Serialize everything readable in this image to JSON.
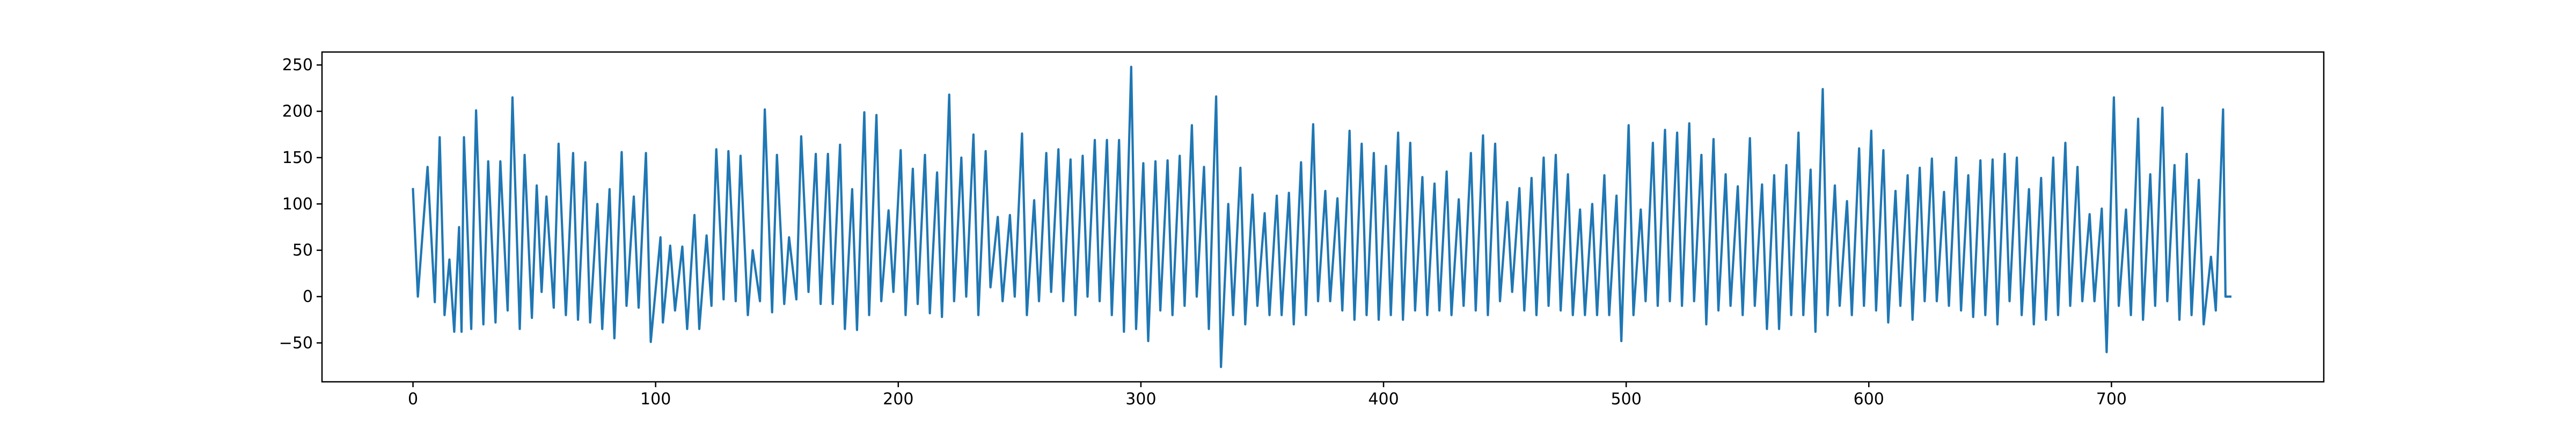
{
  "chart_data": {
    "type": "line",
    "title": "",
    "xlabel": "",
    "ylabel": "",
    "xlim": [
      -37.5,
      787.5
    ],
    "ylim": [
      -92,
      264
    ],
    "grid": false,
    "legend": "none",
    "xticks": [
      0,
      100,
      200,
      300,
      400,
      500,
      600,
      700
    ],
    "yticks": [
      -50,
      0,
      50,
      100,
      150,
      200,
      250
    ],
    "series": [
      {
        "color": "#1f77b4",
        "peaks": [
          [
            0,
            116
          ],
          [
            6,
            140
          ],
          [
            11,
            172
          ],
          [
            15,
            40
          ],
          [
            19,
            75
          ],
          [
            21,
            172
          ],
          [
            26,
            201
          ],
          [
            31,
            146
          ],
          [
            36,
            146
          ],
          [
            41,
            215
          ],
          [
            46,
            153
          ],
          [
            51,
            120
          ],
          [
            55,
            108
          ],
          [
            60,
            165
          ],
          [
            66,
            155
          ],
          [
            71,
            145
          ],
          [
            76,
            100
          ],
          [
            81,
            116
          ],
          [
            86,
            156
          ],
          [
            91,
            108
          ],
          [
            96,
            155
          ],
          [
            102,
            64
          ],
          [
            106,
            55
          ],
          [
            111,
            54
          ],
          [
            116,
            88
          ],
          [
            121,
            66
          ],
          [
            125,
            159
          ],
          [
            130,
            157
          ],
          [
            135,
            152
          ],
          [
            140,
            50
          ],
          [
            145,
            202
          ],
          [
            150,
            153
          ],
          [
            155,
            64
          ],
          [
            160,
            173
          ],
          [
            166,
            154
          ],
          [
            171,
            154
          ],
          [
            176,
            164
          ],
          [
            181,
            116
          ],
          [
            186,
            199
          ],
          [
            191,
            196
          ],
          [
            196,
            93
          ],
          [
            201,
            158
          ],
          [
            206,
            138
          ],
          [
            211,
            153
          ],
          [
            216,
            134
          ],
          [
            221,
            218
          ],
          [
            226,
            150
          ],
          [
            231,
            175
          ],
          [
            236,
            157
          ],
          [
            241,
            86
          ],
          [
            246,
            88
          ],
          [
            251,
            176
          ],
          [
            256,
            104
          ],
          [
            261,
            155
          ],
          [
            266,
            159
          ],
          [
            271,
            148
          ],
          [
            276,
            152
          ],
          [
            281,
            169
          ],
          [
            286,
            169
          ],
          [
            291,
            169
          ],
          [
            296,
            248
          ],
          [
            301,
            144
          ],
          [
            306,
            146
          ],
          [
            311,
            147
          ],
          [
            316,
            152
          ],
          [
            321,
            185
          ],
          [
            326,
            140
          ],
          [
            331,
            216
          ],
          [
            336,
            100
          ],
          [
            341,
            139
          ],
          [
            346,
            110
          ],
          [
            351,
            90
          ],
          [
            356,
            109
          ],
          [
            361,
            112
          ],
          [
            366,
            145
          ],
          [
            371,
            186
          ],
          [
            376,
            114
          ],
          [
            381,
            106
          ],
          [
            386,
            179
          ],
          [
            391,
            165
          ],
          [
            396,
            155
          ],
          [
            401,
            141
          ],
          [
            406,
            177
          ],
          [
            411,
            166
          ],
          [
            416,
            129
          ],
          [
            421,
            122
          ],
          [
            426,
            135
          ],
          [
            431,
            105
          ],
          [
            436,
            155
          ],
          [
            441,
            174
          ],
          [
            446,
            165
          ],
          [
            451,
            102
          ],
          [
            456,
            117
          ],
          [
            461,
            128
          ],
          [
            466,
            150
          ],
          [
            471,
            153
          ],
          [
            476,
            132
          ],
          [
            481,
            94
          ],
          [
            486,
            100
          ],
          [
            491,
            131
          ],
          [
            496,
            109
          ],
          [
            501,
            185
          ],
          [
            506,
            94
          ],
          [
            511,
            166
          ],
          [
            516,
            180
          ],
          [
            521,
            177
          ],
          [
            526,
            187
          ],
          [
            531,
            153
          ],
          [
            536,
            170
          ],
          [
            541,
            132
          ],
          [
            546,
            119
          ],
          [
            551,
            171
          ],
          [
            556,
            121
          ],
          [
            561,
            131
          ],
          [
            566,
            142
          ],
          [
            571,
            177
          ],
          [
            576,
            137
          ],
          [
            581,
            224
          ],
          [
            586,
            120
          ],
          [
            591,
            103
          ],
          [
            596,
            160
          ],
          [
            601,
            179
          ],
          [
            606,
            158
          ],
          [
            611,
            114
          ],
          [
            616,
            131
          ],
          [
            621,
            139
          ],
          [
            626,
            149
          ],
          [
            631,
            113
          ],
          [
            636,
            150
          ],
          [
            641,
            131
          ],
          [
            646,
            147
          ],
          [
            651,
            148
          ],
          [
            656,
            154
          ],
          [
            661,
            150
          ],
          [
            666,
            116
          ],
          [
            671,
            128
          ],
          [
            676,
            150
          ],
          [
            681,
            166
          ],
          [
            686,
            140
          ],
          [
            691,
            89
          ],
          [
            696,
            95
          ],
          [
            701,
            215
          ],
          [
            706,
            94
          ],
          [
            711,
            192
          ],
          [
            716,
            132
          ],
          [
            721,
            204
          ],
          [
            726,
            142
          ],
          [
            731,
            154
          ],
          [
            736,
            126
          ],
          [
            741,
            43
          ],
          [
            746,
            202
          ],
          [
            749,
            0
          ]
        ],
        "troughs": [
          [
            2,
            0
          ],
          [
            9,
            -6
          ],
          [
            13,
            -20
          ],
          [
            17,
            -38
          ],
          [
            20,
            -38
          ],
          [
            24,
            -35
          ],
          [
            29,
            -30
          ],
          [
            34,
            -28
          ],
          [
            39,
            -15
          ],
          [
            44,
            -35
          ],
          [
            49,
            -23
          ],
          [
            53,
            5
          ],
          [
            58,
            -12
          ],
          [
            63,
            -20
          ],
          [
            68,
            -25
          ],
          [
            73,
            -28
          ],
          [
            78,
            -35
          ],
          [
            83,
            -45
          ],
          [
            88,
            -10
          ],
          [
            93,
            -12
          ],
          [
            98,
            -49
          ],
          [
            103,
            -28
          ],
          [
            108,
            -15
          ],
          [
            113,
            -35
          ],
          [
            118,
            -35
          ],
          [
            123,
            -10
          ],
          [
            128,
            -3
          ],
          [
            133,
            -5
          ],
          [
            138,
            -20
          ],
          [
            143,
            -5
          ],
          [
            148,
            -17
          ],
          [
            153,
            -8
          ],
          [
            158,
            -3
          ],
          [
            163,
            5
          ],
          [
            168,
            -8
          ],
          [
            173,
            -8
          ],
          [
            178,
            -35
          ],
          [
            183,
            -36
          ],
          [
            188,
            -20
          ],
          [
            193,
            -5
          ],
          [
            198,
            5
          ],
          [
            203,
            -20
          ],
          [
            208,
            -8
          ],
          [
            213,
            -18
          ],
          [
            218,
            -22
          ],
          [
            223,
            -5
          ],
          [
            228,
            0
          ],
          [
            233,
            -20
          ],
          [
            238,
            10
          ],
          [
            243,
            -5
          ],
          [
            248,
            0
          ],
          [
            253,
            -20
          ],
          [
            258,
            -5
          ],
          [
            263,
            5
          ],
          [
            268,
            -5
          ],
          [
            273,
            -20
          ],
          [
            278,
            0
          ],
          [
            283,
            -5
          ],
          [
            288,
            -20
          ],
          [
            293,
            -38
          ],
          [
            298,
            -35
          ],
          [
            303,
            -48
          ],
          [
            308,
            -15
          ],
          [
            313,
            -20
          ],
          [
            318,
            -10
          ],
          [
            323,
            0
          ],
          [
            328,
            -35
          ],
          [
            333,
            -76
          ],
          [
            338,
            -20
          ],
          [
            343,
            -30
          ],
          [
            348,
            -10
          ],
          [
            353,
            -20
          ],
          [
            358,
            -20
          ],
          [
            363,
            -30
          ],
          [
            368,
            -20
          ],
          [
            373,
            -5
          ],
          [
            378,
            -5
          ],
          [
            383,
            -15
          ],
          [
            388,
            -25
          ],
          [
            393,
            -20
          ],
          [
            398,
            -25
          ],
          [
            403,
            -20
          ],
          [
            408,
            -25
          ],
          [
            413,
            -15
          ],
          [
            418,
            -20
          ],
          [
            423,
            -15
          ],
          [
            428,
            -20
          ],
          [
            433,
            -10
          ],
          [
            438,
            -15
          ],
          [
            443,
            -20
          ],
          [
            448,
            -5
          ],
          [
            453,
            5
          ],
          [
            458,
            -15
          ],
          [
            463,
            -20
          ],
          [
            468,
            -10
          ],
          [
            473,
            -15
          ],
          [
            478,
            -20
          ],
          [
            483,
            -20
          ],
          [
            488,
            -20
          ],
          [
            493,
            -20
          ],
          [
            498,
            -48
          ],
          [
            503,
            -20
          ],
          [
            508,
            -5
          ],
          [
            513,
            -10
          ],
          [
            518,
            -5
          ],
          [
            523,
            -10
          ],
          [
            528,
            -5
          ],
          [
            533,
            -30
          ],
          [
            538,
            -15
          ],
          [
            543,
            -10
          ],
          [
            548,
            -20
          ],
          [
            553,
            -10
          ],
          [
            558,
            -35
          ],
          [
            563,
            -35
          ],
          [
            568,
            -20
          ],
          [
            573,
            -20
          ],
          [
            578,
            -38
          ],
          [
            583,
            -20
          ],
          [
            588,
            -10
          ],
          [
            593,
            -20
          ],
          [
            598,
            -10
          ],
          [
            603,
            -15
          ],
          [
            608,
            -28
          ],
          [
            613,
            -10
          ],
          [
            618,
            -25
          ],
          [
            623,
            -5
          ],
          [
            628,
            -5
          ],
          [
            633,
            -10
          ],
          [
            638,
            -15
          ],
          [
            643,
            -22
          ],
          [
            648,
            -20
          ],
          [
            653,
            -30
          ],
          [
            658,
            -5
          ],
          [
            663,
            -20
          ],
          [
            668,
            -30
          ],
          [
            673,
            -25
          ],
          [
            678,
            -20
          ],
          [
            683,
            -10
          ],
          [
            688,
            -5
          ],
          [
            693,
            -5
          ],
          [
            698,
            -60
          ],
          [
            703,
            -10
          ],
          [
            708,
            -20
          ],
          [
            713,
            -25
          ],
          [
            718,
            -10
          ],
          [
            723,
            -5
          ],
          [
            728,
            -25
          ],
          [
            733,
            -20
          ],
          [
            738,
            -30
          ],
          [
            743,
            -15
          ],
          [
            747,
            0
          ]
        ]
      }
    ]
  }
}
